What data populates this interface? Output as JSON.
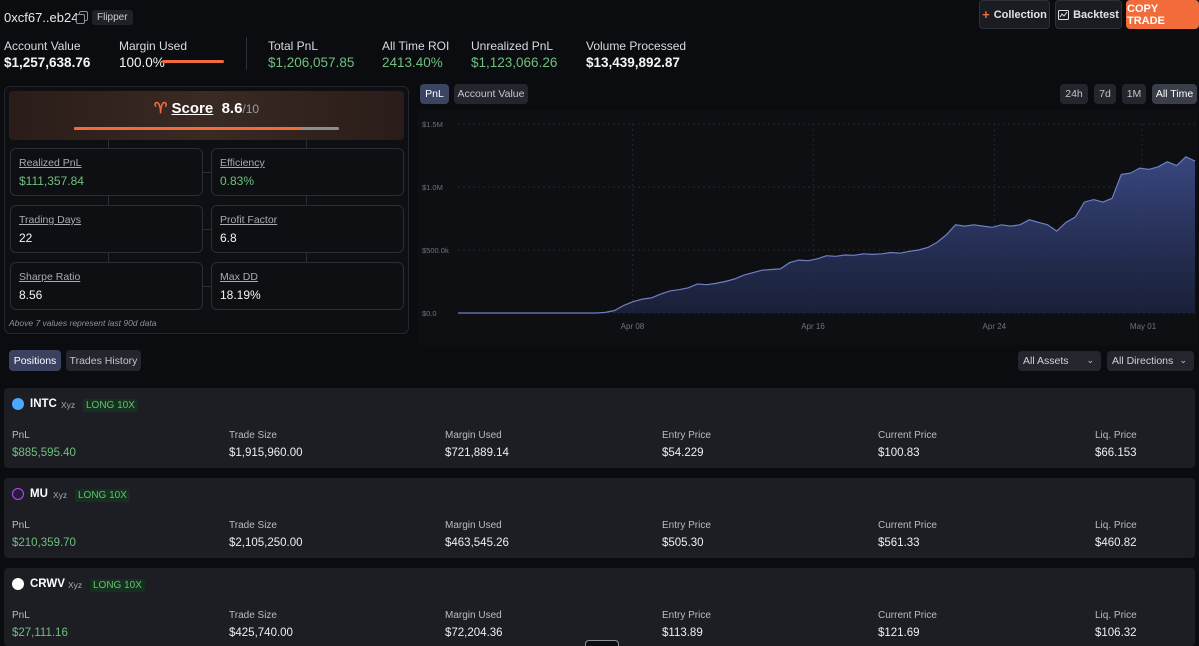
{
  "header": {
    "address": "0xcf67..eb24",
    "tag": "Flipper",
    "collection_label": "Collection",
    "backtest_label": "Backtest",
    "copy_trade_label": "COPY TRADE"
  },
  "stats": {
    "account_value_label": "Account Value",
    "account_value": "$1,257,638.76",
    "margin_used_label": "Margin Used",
    "margin_used": "100.0%",
    "margin_used_fraction": 1.0,
    "total_pnl_label": "Total PnL",
    "total_pnl": "$1,206,057.85",
    "roi_label": "All Time ROI",
    "roi": "2413.40%",
    "unrealized_label": "Unrealized PnL",
    "unrealized": "$1,123,066.26",
    "volume_label": "Volume Processed",
    "volume": "$13,439,892.87"
  },
  "score": {
    "word": "Score",
    "value": "8.6",
    "out_of": "/10",
    "fraction": 0.86
  },
  "metrics": [
    {
      "label": "Realized PnL",
      "value": "$111,357.84",
      "color": "green"
    },
    {
      "label": "Efficiency",
      "value": "0.83%",
      "color": "green"
    },
    {
      "label": "Trading Days",
      "value": "22",
      "color": "white"
    },
    {
      "label": "Profit Factor",
      "value": "6.8",
      "color": "white"
    },
    {
      "label": "Sharpe Ratio",
      "value": "8.56",
      "color": "white"
    },
    {
      "label": "Max DD",
      "value": "18.19%",
      "color": "white"
    }
  ],
  "metrics_note": "Above 7 values represent last 90d data",
  "chart_tabs": {
    "pnl": "PnL",
    "account_value": "Account Value"
  },
  "range_tabs": [
    "24h",
    "7d",
    "1M",
    "All Time"
  ],
  "chart_data": {
    "type": "area",
    "title": "",
    "xlabel": "",
    "ylabel": "",
    "y_ticks": [
      "$0.0",
      "$500.0k",
      "$1.0M",
      "$1.5M"
    ],
    "ylim": [
      0,
      1500000
    ],
    "x_ticks": [
      "Apr 08",
      "Apr 16",
      "Apr 24",
      "May 01"
    ],
    "grid": true,
    "color": "#3b4a86",
    "series": [
      {
        "values": [
          0,
          0,
          0,
          0,
          0,
          0,
          0,
          0,
          0,
          0,
          0,
          0,
          0,
          0,
          0,
          0,
          5000,
          20000,
          60000,
          90000,
          110000,
          120000,
          150000,
          175000,
          185000,
          200000,
          230000,
          225000,
          235000,
          250000,
          270000,
          300000,
          320000,
          340000,
          345000,
          350000,
          400000,
          420000,
          415000,
          430000,
          455000,
          450000,
          460000,
          458000,
          470000,
          465000,
          470000,
          480000,
          475000,
          490000,
          500000,
          520000,
          560000,
          620000,
          700000,
          690000,
          700000,
          690000,
          680000,
          700000,
          690000,
          700000,
          740000,
          720000,
          700000,
          650000,
          720000,
          760000,
          880000,
          900000,
          880000,
          910000,
          1100000,
          1110000,
          1150000,
          1140000,
          1160000,
          1200000,
          1170000,
          1240000,
          1206057
        ]
      }
    ]
  },
  "positions_tabs": {
    "positions": "Positions",
    "trades_history": "Trades History"
  },
  "filters": {
    "assets": "All Assets",
    "directions": "All Directions"
  },
  "columns": [
    "PnL",
    "Trade Size",
    "Margin Used",
    "Entry Price",
    "Current Price",
    "Liq. Price"
  ],
  "positions": [
    {
      "ticker": "INTC",
      "market": "Xyz",
      "side": "LONG 10X",
      "icon_color": "#4aa8ff",
      "values": [
        "$885,595.40",
        "$1,915,960.00",
        "$721,889.14",
        "$54.229",
        "$100.83",
        "$66.153"
      ]
    },
    {
      "ticker": "MU",
      "market": "Xyz",
      "side": "LONG 10X",
      "icon_color": "#b44cff",
      "values": [
        "$210,359.70",
        "$2,105,250.00",
        "$463,545.26",
        "$505.30",
        "$561.33",
        "$460.82"
      ]
    },
    {
      "ticker": "CRWV",
      "market": "Xyz",
      "side": "LONG 10X",
      "icon_color": "#ffffff",
      "values": [
        "$27,111.16",
        "$425,740.00",
        "$72,204.36",
        "$113.89",
        "$121.69",
        "$106.32"
      ]
    }
  ]
}
